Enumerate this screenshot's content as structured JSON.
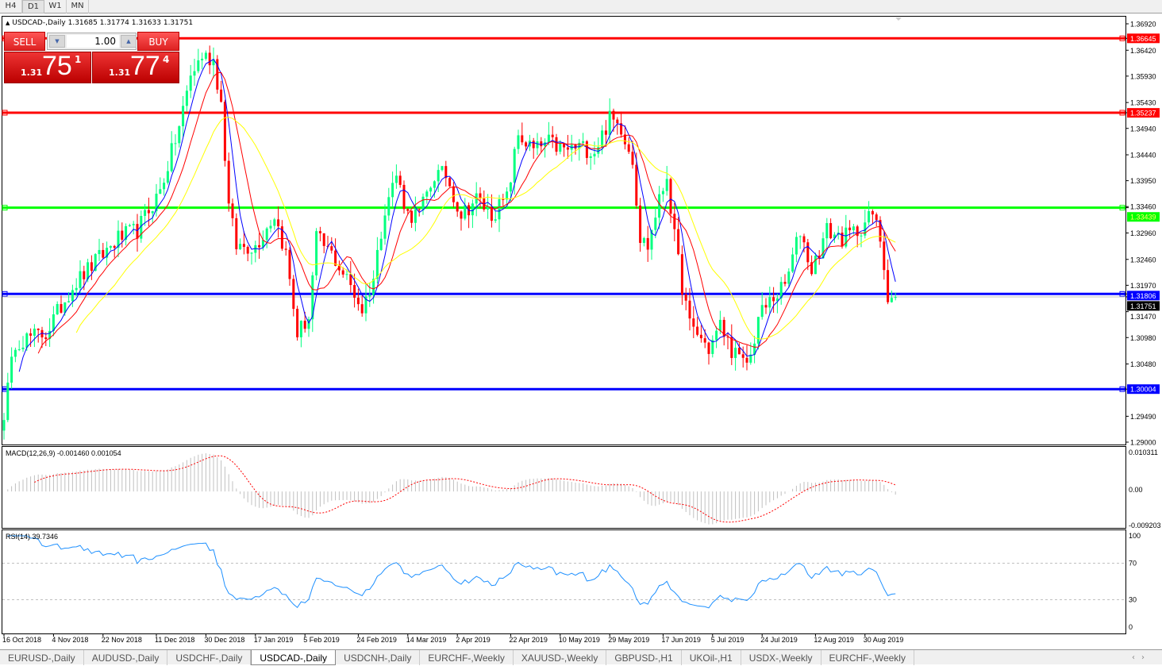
{
  "timeframes": [
    "H4",
    "D1",
    "W1",
    "MN"
  ],
  "active_timeframe": "D1",
  "chart": {
    "symbol_line": "USDCAD-,Daily  1.31685 1.31774 1.31633 1.31751",
    "collapse_icon": "triangle-up-icon"
  },
  "trade_panel": {
    "sell_label": "SELL",
    "buy_label": "BUY",
    "lot": "1.00",
    "sell": {
      "big": "1.31",
      "main": "75",
      "pip": "1"
    },
    "buy": {
      "big": "1.31",
      "main": "77",
      "pip": "4"
    },
    "color": "#e02020"
  },
  "price_axis": {
    "ticks": [
      "1.36920",
      "1.36420",
      "1.35930",
      "1.35430",
      "1.34940",
      "1.34440",
      "1.33950",
      "1.33460",
      "1.32960",
      "1.32460",
      "1.31970",
      "1.31470",
      "1.30980",
      "1.30480",
      "1.29490",
      "1.29000"
    ],
    "range": [
      1.29,
      1.3692
    ],
    "current": {
      "value": "1.31751",
      "color": "#000000"
    }
  },
  "hlines": [
    {
      "value": "1.36645",
      "color": "#ff0000"
    },
    {
      "value": "1.35237",
      "color": "#ff0000"
    },
    {
      "value": "1.33439",
      "color": "#00ff00"
    },
    {
      "value": "1.31806",
      "color": "#0000ff"
    },
    {
      "value": "1.30004",
      "color": "#0000ff"
    }
  ],
  "chart_data": {
    "type": "candlestick",
    "up_color": "#00ff7f",
    "down_color": "#ff0000",
    "moving_averages": [
      {
        "color": "#0000ff"
      },
      {
        "color": "#ff0000"
      },
      {
        "color": "#ffff00"
      }
    ],
    "price_path": [
      [
        0,
        1.2956
      ],
      [
        3,
        1.3091
      ],
      [
        11,
        1.3106
      ],
      [
        18,
        1.3196
      ],
      [
        24,
        1.3241
      ],
      [
        30,
        1.3286
      ],
      [
        35,
        1.3301
      ],
      [
        41,
        1.3376
      ],
      [
        46,
        1.3497
      ],
      [
        49,
        1.3594
      ],
      [
        52,
        1.3632
      ],
      [
        55,
        1.3624
      ],
      [
        57,
        1.3542
      ],
      [
        59,
        1.3346
      ],
      [
        61,
        1.3271
      ],
      [
        66,
        1.3271
      ],
      [
        71,
        1.3331
      ],
      [
        74,
        1.3256
      ],
      [
        77,
        1.3106
      ],
      [
        80,
        1.3136
      ],
      [
        82,
        1.3286
      ],
      [
        86,
        1.3256
      ],
      [
        91,
        1.3196
      ],
      [
        94,
        1.3151
      ],
      [
        97,
        1.3211
      ],
      [
        100,
        1.3346
      ],
      [
        103,
        1.3406
      ],
      [
        106,
        1.3331
      ],
      [
        109,
        1.3331
      ],
      [
        113,
        1.3406
      ],
      [
        116,
        1.3406
      ],
      [
        120,
        1.3331
      ],
      [
        124,
        1.3361
      ],
      [
        128,
        1.3331
      ],
      [
        132,
        1.3361
      ],
      [
        135,
        1.3482
      ],
      [
        139,
        1.3452
      ],
      [
        143,
        1.3467
      ],
      [
        147,
        1.3452
      ],
      [
        151,
        1.3459
      ],
      [
        155,
        1.3452
      ],
      [
        159,
        1.3512
      ],
      [
        162,
        1.3497
      ],
      [
        165,
        1.3437
      ],
      [
        167,
        1.3286
      ],
      [
        169,
        1.3271
      ],
      [
        171,
        1.3331
      ],
      [
        174,
        1.3406
      ],
      [
        176,
        1.3286
      ],
      [
        178,
        1.3196
      ],
      [
        180,
        1.3121
      ],
      [
        182,
        1.3106
      ],
      [
        185,
        1.3076
      ],
      [
        188,
        1.3121
      ],
      [
        191,
        1.3076
      ],
      [
        194,
        1.3046
      ],
      [
        196,
        1.3061
      ],
      [
        198,
        1.3136
      ],
      [
        201,
        1.3166
      ],
      [
        205,
        1.3196
      ],
      [
        209,
        1.3301
      ],
      [
        212,
        1.3226
      ],
      [
        216,
        1.3301
      ],
      [
        220,
        1.3286
      ],
      [
        224,
        1.3301
      ],
      [
        228,
        1.3331
      ],
      [
        230,
        1.3286
      ],
      [
        232,
        1.3181
      ],
      [
        234,
        1.3175
      ]
    ],
    "dates": [
      [
        0,
        "16 Oct 2018"
      ],
      [
        13,
        "4 Nov 2018"
      ],
      [
        26,
        "22 Nov 2018"
      ],
      [
        40,
        "11 Dec 2018"
      ],
      [
        53,
        "30 Dec 2018"
      ],
      [
        66,
        "17 Jan 2019"
      ],
      [
        79,
        "5 Feb 2019"
      ],
      [
        93,
        "24 Feb 2019"
      ],
      [
        106,
        "14 Mar 2019"
      ],
      [
        119,
        "2 Apr 2019"
      ],
      [
        133,
        "22 Apr 2019"
      ],
      [
        146,
        "10 May 2019"
      ],
      [
        159,
        "29 May 2019"
      ],
      [
        173,
        "17 Jun 2019"
      ],
      [
        186,
        "5 Jul 2019"
      ],
      [
        199,
        "24 Jul 2019"
      ],
      [
        213,
        "12 Aug 2019"
      ],
      [
        226,
        "30 Aug 2019"
      ]
    ],
    "macd": {
      "label": "MACD(12,26,9) -0.001460 0.001054",
      "ticks": [
        "0.010311",
        "0.00",
        "-0.009203"
      ],
      "range": [
        -0.009203,
        0.010311
      ],
      "signal_color": "#ff0000",
      "hist_color": "#c0c0c0"
    },
    "rsi": {
      "label": "RSI(14) 39.7346",
      "ticks": [
        "100",
        "70",
        "30",
        "0"
      ],
      "levels": [
        70,
        30
      ],
      "color": "#1e90ff"
    }
  },
  "tabs": [
    "EURUSD-,Daily",
    "AUDUSD-,Daily",
    "USDCHF-,Daily",
    "USDCAD-,Daily",
    "USDCNH-,Daily",
    "EURCHF-,Weekly",
    "XAUUSD-,Weekly",
    "GBPUSD-,H1",
    "UKOil-,H1",
    "USDX-,Weekly",
    "EURCHF-,Weekly"
  ],
  "active_tab": "USDCAD-,Daily"
}
